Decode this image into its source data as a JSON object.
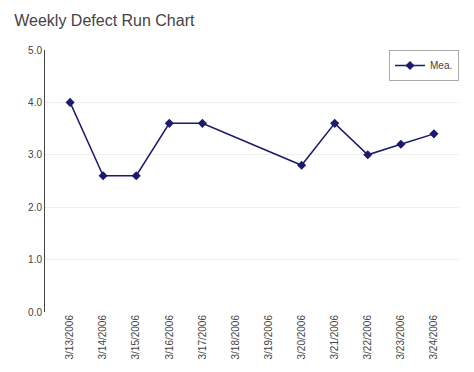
{
  "chart_data": {
    "type": "line",
    "title": "Weekly Defect Run Chart",
    "categories": [
      "3/13/2006",
      "3/14/2006",
      "3/15/2006",
      "3/16/2006",
      "3/17/2006",
      "3/18/2006",
      "3/19/2006",
      "3/20/2006",
      "3/21/2006",
      "3/22/2006",
      "3/23/2006",
      "3/24/2006"
    ],
    "series": [
      {
        "name": "Mea.",
        "color": "#1a1a6e",
        "marker": "diamond",
        "values": [
          4.0,
          2.6,
          2.6,
          3.6,
          3.6,
          null,
          null,
          2.8,
          3.6,
          3.0,
          3.2,
          3.4
        ]
      }
    ],
    "ylim": [
      0.0,
      5.0
    ],
    "yticks": [
      {
        "value": 0,
        "label": "0.0"
      },
      {
        "value": 1,
        "label": "1.0"
      },
      {
        "value": 2,
        "label": "2.0"
      },
      {
        "value": 3,
        "label": "3.0"
      },
      {
        "value": 4,
        "label": "4.0"
      },
      {
        "value": 5,
        "label": "5.0"
      }
    ],
    "grid": true,
    "legend": "top-right"
  }
}
